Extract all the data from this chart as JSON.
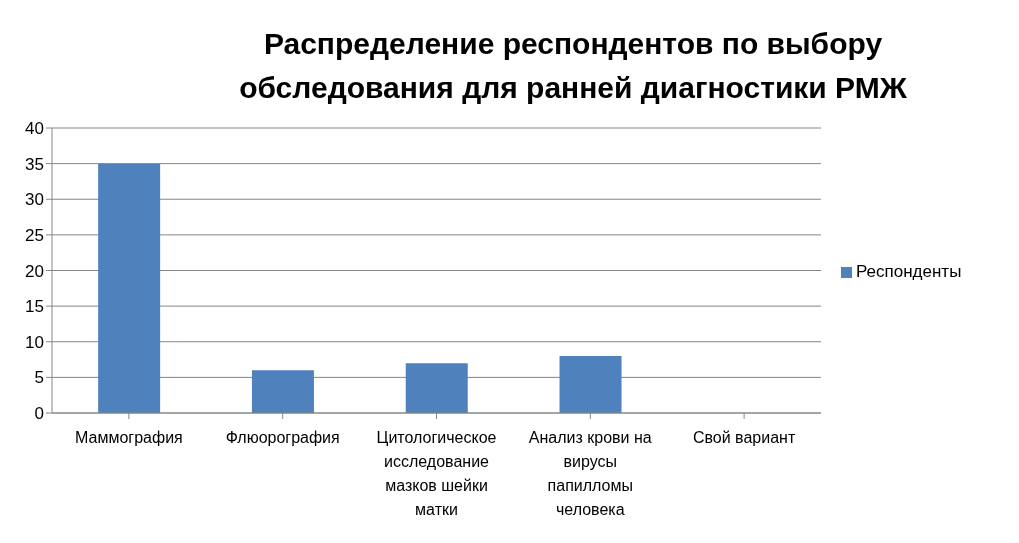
{
  "chart_data": {
    "type": "bar",
    "title": "Распределение респондентов по выбору обследования для ранней диагностики РМЖ",
    "categories": [
      "Маммография",
      "Флюорография",
      "Цитологическое исследование мазков шейки матки",
      "Анализ крови на вирусы папилломы человека",
      "Свой вариант"
    ],
    "series": [
      {
        "name": "Респонденты",
        "color": "#4f81bd",
        "values": [
          35,
          6,
          7,
          8,
          0
        ]
      }
    ],
    "ylim": [
      0,
      40
    ],
    "yticks": [
      0,
      5,
      10,
      15,
      20,
      25,
      30,
      35,
      40
    ],
    "grid": "y",
    "legend": "right"
  }
}
